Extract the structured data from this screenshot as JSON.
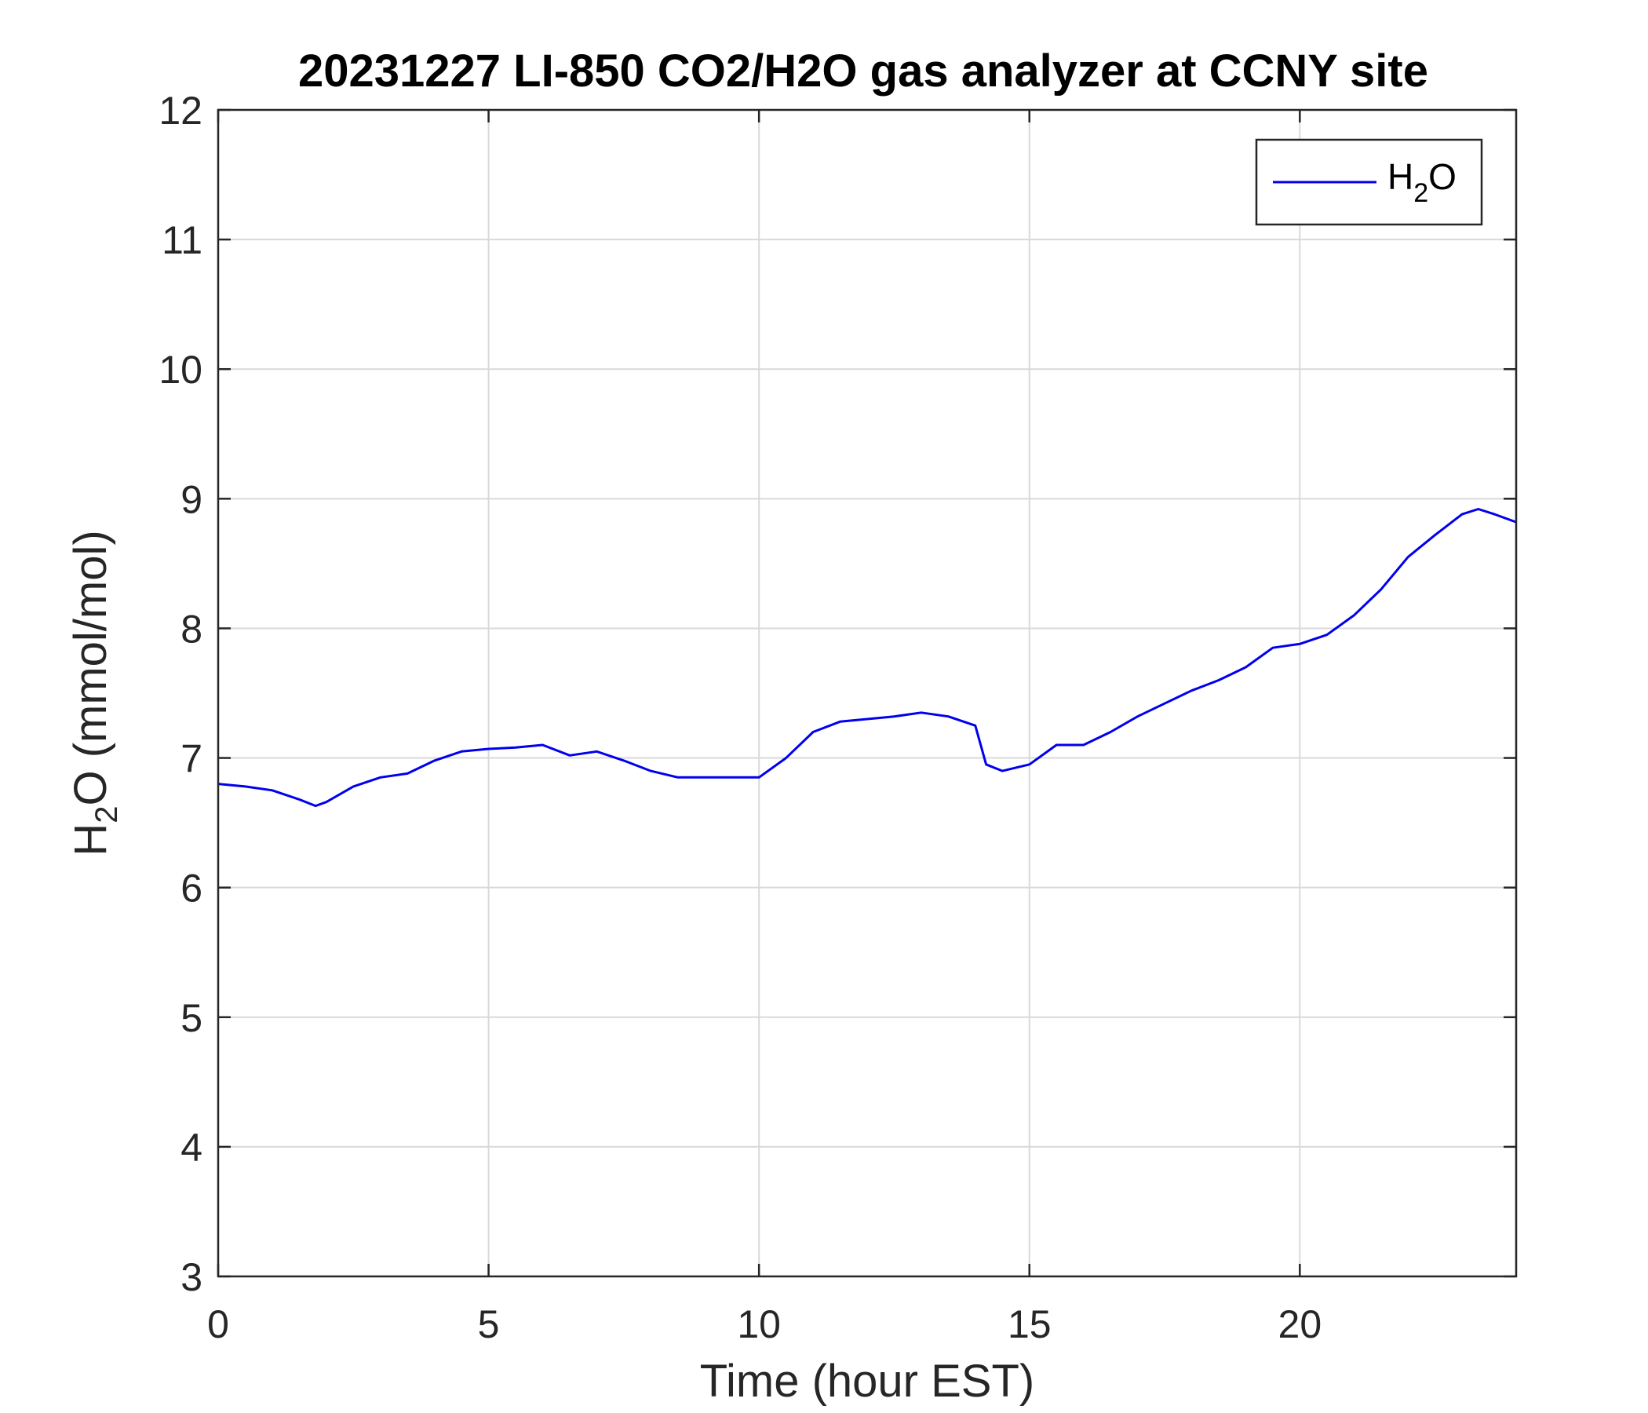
{
  "chart_data": {
    "type": "line",
    "title": "20231227 LI-850 CO2/H2O gas analyzer at CCNY site",
    "xlabel": "Time (hour EST)",
    "ylabel": {
      "main": "H",
      "sub": "2",
      "rest": "O (mmol/mol)"
    },
    "xlim": [
      0,
      24
    ],
    "ylim": [
      3,
      12
    ],
    "xticks": [
      0,
      5,
      10,
      15,
      20
    ],
    "yticks": [
      3,
      4,
      5,
      6,
      7,
      8,
      9,
      10,
      11,
      12
    ],
    "grid": true,
    "legend_position": "top-right",
    "series": [
      {
        "legend": {
          "main": "H",
          "sub": "2",
          "rest": "O"
        },
        "color": "#0000ee",
        "x": [
          0,
          0.5,
          1.0,
          1.5,
          1.8,
          2.0,
          2.5,
          3.0,
          3.5,
          4.0,
          4.5,
          5.0,
          5.5,
          6.0,
          6.5,
          7.0,
          7.5,
          8.0,
          8.5,
          9.0,
          9.5,
          10.0,
          10.5,
          11.0,
          11.5,
          12.0,
          12.5,
          13.0,
          13.5,
          14.0,
          14.2,
          14.5,
          15.0,
          15.5,
          16.0,
          16.5,
          17.0,
          17.5,
          18.0,
          18.5,
          19.0,
          19.5,
          20.0,
          20.5,
          21.0,
          21.5,
          22.0,
          22.5,
          23.0,
          23.3,
          23.6,
          24.0
        ],
        "y": [
          6.8,
          6.78,
          6.75,
          6.68,
          6.63,
          6.66,
          6.78,
          6.85,
          6.88,
          6.98,
          7.05,
          7.07,
          7.08,
          7.1,
          7.02,
          7.05,
          6.98,
          6.9,
          6.85,
          6.85,
          6.85,
          6.85,
          7.0,
          7.2,
          7.28,
          7.3,
          7.32,
          7.35,
          7.32,
          7.25,
          6.95,
          6.9,
          6.95,
          7.1,
          7.1,
          7.2,
          7.32,
          7.42,
          7.52,
          7.6,
          7.7,
          7.85,
          7.88,
          7.95,
          8.1,
          8.3,
          8.55,
          8.72,
          8.88,
          8.92,
          8.88,
          8.82
        ]
      }
    ]
  }
}
